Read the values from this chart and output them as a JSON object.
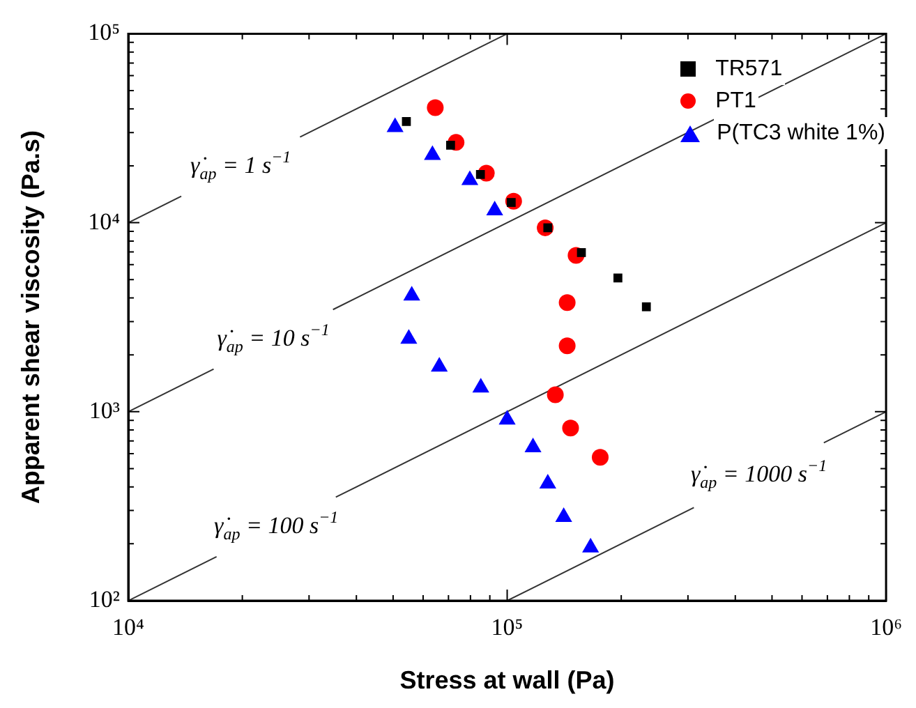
{
  "chart_data": {
    "type": "scatter",
    "xlabel": "Stress at wall (Pa)",
    "ylabel": "Apparent shear viscosity (Pa.s)",
    "log": "xy",
    "grid": false,
    "legend": "top right",
    "xlim": [
      10000,
      1000000
    ],
    "ylim": [
      100,
      100000
    ],
    "xticks": [
      {
        "value": 10000,
        "label": "10⁴"
      },
      {
        "value": 20000,
        "label": null
      },
      {
        "value": 30000,
        "label": null
      },
      {
        "value": 40000,
        "label": null
      },
      {
        "value": 50000,
        "label": null
      },
      {
        "value": 60000,
        "label": null
      },
      {
        "value": 70000,
        "label": null
      },
      {
        "value": 80000,
        "label": null
      },
      {
        "value": 90000,
        "label": null
      },
      {
        "value": 100000,
        "label": "10⁵"
      },
      {
        "value": 200000,
        "label": null
      },
      {
        "value": 300000,
        "label": null
      },
      {
        "value": 400000,
        "label": null
      },
      {
        "value": 500000,
        "label": null
      },
      {
        "value": 600000,
        "label": null
      },
      {
        "value": 700000,
        "label": null
      },
      {
        "value": 800000,
        "label": null
      },
      {
        "value": 900000,
        "label": null
      },
      {
        "value": 1000000,
        "label": "10⁶"
      }
    ],
    "yticks": [
      {
        "value": 100,
        "label": "10²"
      },
      {
        "value": 200,
        "label": null
      },
      {
        "value": 300,
        "label": null
      },
      {
        "value": 400,
        "label": null
      },
      {
        "value": 500,
        "label": null
      },
      {
        "value": 600,
        "label": null
      },
      {
        "value": 700,
        "label": null
      },
      {
        "value": 800,
        "label": null
      },
      {
        "value": 900,
        "label": null
      },
      {
        "value": 1000,
        "label": "10³"
      },
      {
        "value": 2000,
        "label": null
      },
      {
        "value": 3000,
        "label": null
      },
      {
        "value": 4000,
        "label": null
      },
      {
        "value": 5000,
        "label": null
      },
      {
        "value": 6000,
        "label": null
      },
      {
        "value": 7000,
        "label": null
      },
      {
        "value": 8000,
        "label": null
      },
      {
        "value": 9000,
        "label": null
      },
      {
        "value": 10000,
        "label": "10⁴"
      },
      {
        "value": 20000,
        "label": null
      },
      {
        "value": 30000,
        "label": null
      },
      {
        "value": 40000,
        "label": null
      },
      {
        "value": 50000,
        "label": null
      },
      {
        "value": 60000,
        "label": null
      },
      {
        "value": 70000,
        "label": null
      },
      {
        "value": 80000,
        "label": null
      },
      {
        "value": 90000,
        "label": null
      },
      {
        "value": 100000,
        "label": "10⁵"
      }
    ],
    "series": [
      {
        "name": "TR571",
        "color": "#000000",
        "marker": "square",
        "x": [
          54200,
          70900,
          85000,
          102500,
          128000,
          157000,
          196000,
          233000
        ],
        "values": [
          34300,
          25700,
          18000,
          12800,
          9400,
          6950,
          5100,
          3590
        ]
      },
      {
        "name": "PT1",
        "color": "#ff0000",
        "marker": "circle",
        "x": [
          64600,
          73300,
          88100,
          104000,
          126000,
          152000,
          144000,
          144000,
          134000,
          147000,
          176000
        ],
        "values": [
          40600,
          26600,
          18300,
          13000,
          9400,
          6720,
          3780,
          2230,
          1230,
          820,
          574
        ]
      },
      {
        "name": "P(TC3 white 1%)",
        "color": "#0000ff",
        "marker": "triangle",
        "x": [
          50600,
          63500,
          79700,
          92700,
          56000,
          55000,
          66200,
          85200,
          100000,
          117000,
          128000,
          141000,
          166000
        ],
        "values": [
          32000,
          22800,
          16800,
          11600,
          4110,
          2430,
          1730,
          1340,
          908,
          647,
          416,
          277,
          191
        ]
      },
      {
        "type": "line",
        "color": "#333333",
        "marker": "none",
        "x": [
          10000,
          13800,
          20000,
          28400,
          100000
        ],
        "values": [
          10000,
          13800,
          null,
          28400,
          100000
        ]
      },
      {
        "type": "line",
        "color": "#333333",
        "marker": "none",
        "x": [
          10000,
          16800,
          24000,
          34700,
          1000000
        ],
        "values": [
          1000,
          1680,
          null,
          3470,
          100000
        ]
      },
      {
        "type": "line",
        "color": "#333333",
        "marker": "none",
        "x": [
          10000,
          17100,
          25000,
          35300,
          1000000
        ],
        "values": [
          100,
          171,
          null,
          353,
          10000
        ]
      },
      {
        "type": "line",
        "color": "#333333",
        "marker": "none",
        "x": [
          100000,
          311000,
          450000,
          685000,
          1000000
        ],
        "values": [
          100,
          311,
          null,
          685,
          1000
        ]
      }
    ],
    "annotations": [
      "γ̇$_{ap}$ = 1 s$^{−1}$",
      "γ̇$_{ap}$ = 10 s$^{−1}$",
      "γ̇$_{ap}$ = 100 s$^{−1}$",
      "γ̇$_{ap}$ = 1000 s$^{−1}$"
    ]
  }
}
